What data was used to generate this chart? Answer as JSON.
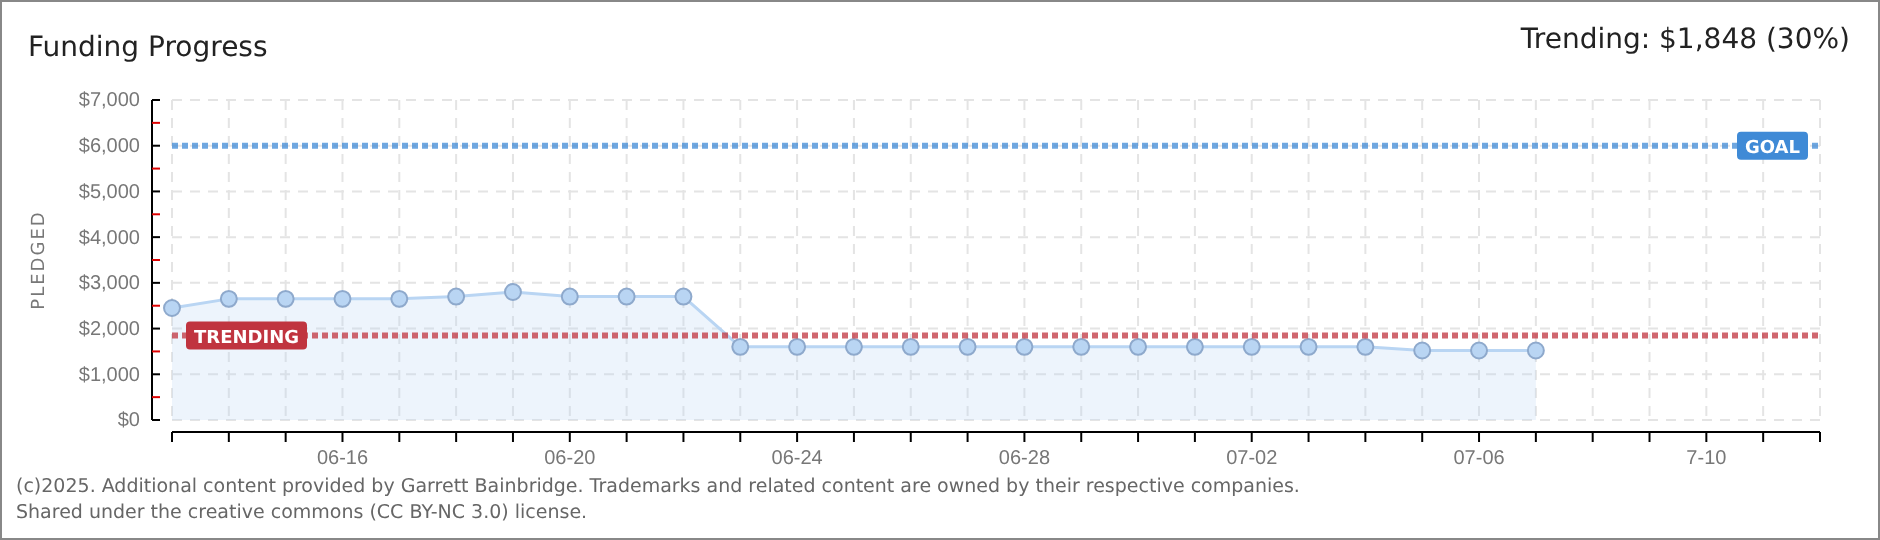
{
  "chart_data": {
    "type": "area",
    "title": "Funding Progress",
    "ylabel": "PLEDGED",
    "annotations": [
      "Trending: $1,848 (30%)",
      "(c)2025. Additional content provided by Garrett Bainbridge. Trademarks and related content are owned by their respective companies.",
      "Shared under the creative commons (CC BY-NC 3.0) license."
    ],
    "x": [
      "--06-13",
      "--06-14",
      "--06-15",
      "--06-16",
      "--06-17",
      "--06-18",
      "--06-19",
      "--06-20",
      "--06-21",
      "--06-22",
      "--06-23",
      "--06-24",
      "--06-25",
      "--06-26",
      "--06-27",
      "--06-28",
      "--06-29",
      "--06-30",
      "--07-01",
      "--07-02",
      "--07-03",
      "--07-04",
      "--07-05",
      "--07-06",
      "--07-07"
    ],
    "series": [
      {
        "color": "#b9d5f3",
        "values": [
          2450,
          2650,
          2650,
          2650,
          2650,
          2700,
          2800,
          2700,
          2700,
          2700,
          1600,
          1600,
          1600,
          1600,
          1600,
          1600,
          1600,
          1600,
          1600,
          1600,
          1600,
          1600,
          1520,
          1520,
          1520
        ]
      }
    ],
    "xlim": [
      "--06-13",
      "--07-12"
    ],
    "xticks": [
      {
        "value": "--06-13",
        "label": null
      },
      {
        "value": "--06-14",
        "label": null
      },
      {
        "value": "--06-15",
        "label": null
      },
      {
        "value": "--06-16",
        "label": "06-16"
      },
      {
        "value": "--06-17",
        "label": null
      },
      {
        "value": "--06-18",
        "label": null
      },
      {
        "value": "--06-19",
        "label": null
      },
      {
        "value": "--06-20",
        "label": "06-20"
      },
      {
        "value": "--06-21",
        "label": null
      },
      {
        "value": "--06-22",
        "label": null
      },
      {
        "value": "--06-23",
        "label": null
      },
      {
        "value": "--06-24",
        "label": "06-24"
      },
      {
        "value": "--06-25",
        "label": null
      },
      {
        "value": "--06-26",
        "label": null
      },
      {
        "value": "--06-27",
        "label": null
      },
      {
        "value": "--06-28",
        "label": "06-28"
      },
      {
        "value": "--06-29",
        "label": null
      },
      {
        "value": "--06-30",
        "label": null
      },
      {
        "value": "--07-01",
        "label": null
      },
      {
        "value": "--07-02",
        "label": "07-02"
      },
      {
        "value": "--07-03",
        "label": null
      },
      {
        "value": "--07-04",
        "label": null
      },
      {
        "value": "--07-05",
        "label": null
      },
      {
        "value": "--07-06",
        "label": "07-06"
      },
      {
        "value": "--07-07",
        "label": null
      },
      {
        "value": "--07-08",
        "label": null
      },
      {
        "value": "--07-09",
        "label": null
      },
      {
        "value": "--07-10",
        "label": "7-10"
      },
      {
        "value": "--07-11",
        "label": null
      },
      {
        "value": "--07-12",
        "label": null
      }
    ],
    "ylim": [
      0,
      7000
    ],
    "yticks": [
      {
        "value": 0,
        "label": "$0"
      },
      {
        "value": 500,
        "label": null
      },
      {
        "value": 1000,
        "label": "$1,000"
      },
      {
        "value": 1500,
        "label": null
      },
      {
        "value": 2000,
        "label": "$2,000"
      },
      {
        "value": 2500,
        "label": null
      },
      {
        "value": 3000,
        "label": "$3,000"
      },
      {
        "value": 3500,
        "label": null
      },
      {
        "value": 4000,
        "label": "$4,000"
      },
      {
        "value": 4500,
        "label": null
      },
      {
        "value": 5000,
        "label": "$5,000"
      },
      {
        "value": 5500,
        "label": null
      },
      {
        "value": 6000,
        "label": "$6,000"
      },
      {
        "value": 6500,
        "label": null
      },
      {
        "value": 7000,
        "label": "$7,000"
      }
    ],
    "ref_lines": [
      {
        "axis": "y",
        "value": 6000,
        "label": "GOAL",
        "color": "#3f8ad6",
        "line_style": "dotted"
      },
      {
        "axis": "y",
        "value": 1848,
        "label": "TRENDING",
        "color": "#c0343f",
        "line_style": "dotted"
      }
    ],
    "grid": true,
    "marker": "circle"
  }
}
